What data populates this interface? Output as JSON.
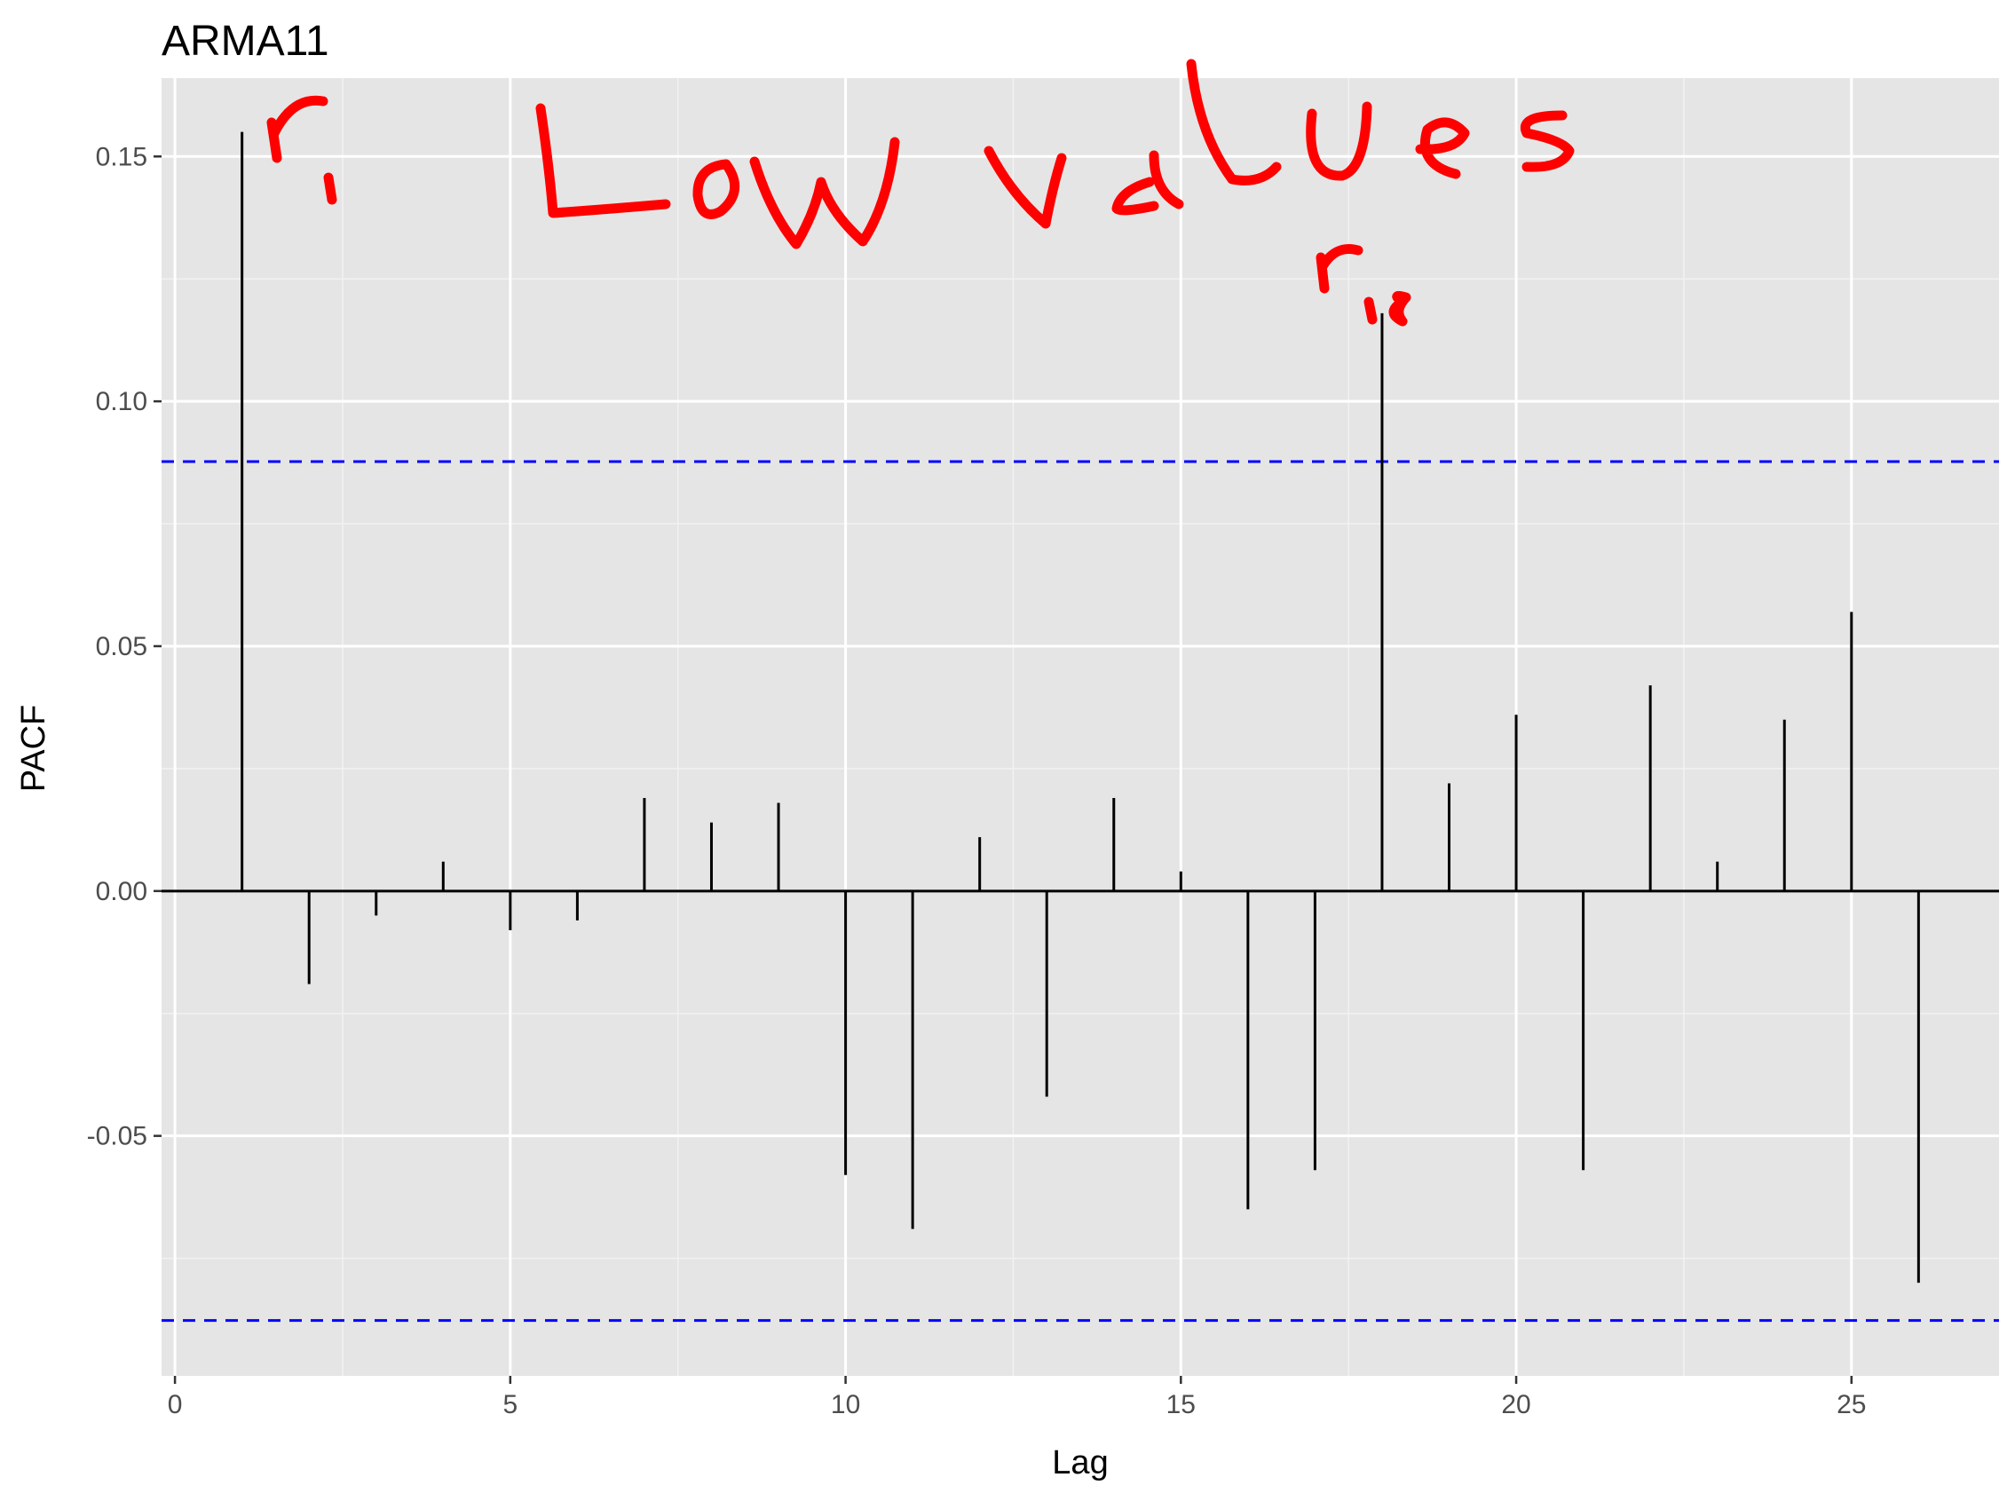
{
  "chart_data": {
    "type": "bar",
    "subtype": "pacf-lollipop",
    "title": "ARMA11",
    "xlabel": "Lag",
    "ylabel": "PACF",
    "xlim": [
      -0.2,
      27.2
    ],
    "ylim": [
      -0.099,
      0.166
    ],
    "x_ticks": [
      0,
      5,
      10,
      15,
      20,
      25
    ],
    "x_tick_labels": [
      "0",
      "5",
      "10",
      "15",
      "20",
      "25"
    ],
    "y_ticks": [
      -0.05,
      0.0,
      0.05,
      0.1,
      0.15
    ],
    "y_tick_labels": [
      "-0.05",
      "0.00",
      "0.05",
      "0.10",
      "0.15"
    ],
    "y_minor_ticks": [
      -0.075,
      -0.025,
      0.025,
      0.075,
      0.125
    ],
    "x_minor_ticks": [
      2.5,
      7.5,
      12.5,
      17.5,
      22.5
    ],
    "grid": true,
    "background": "#e5e5e5",
    "lags": [
      1,
      2,
      3,
      4,
      5,
      6,
      7,
      8,
      9,
      10,
      11,
      12,
      13,
      14,
      15,
      16,
      17,
      18,
      19,
      20,
      21,
      22,
      23,
      24,
      25,
      26
    ],
    "values": [
      0.155,
      -0.019,
      -0.005,
      0.006,
      -0.008,
      -0.006,
      0.019,
      0.014,
      0.018,
      -0.058,
      -0.069,
      0.011,
      -0.042,
      0.019,
      0.004,
      -0.065,
      -0.057,
      0.118,
      0.022,
      0.036,
      -0.057,
      0.042,
      0.006,
      0.035,
      0.057,
      -0.08
    ],
    "bar_color": "#000000",
    "confidence_bounds": [
      0.0877,
      -0.0877
    ],
    "confidence_color": "#0000ff",
    "zero_line_color": "#000000",
    "annotations": {
      "color": "#ff0000",
      "handwritten_text": "Low values",
      "r1_label": "r1",
      "r18_label": "r18"
    }
  }
}
